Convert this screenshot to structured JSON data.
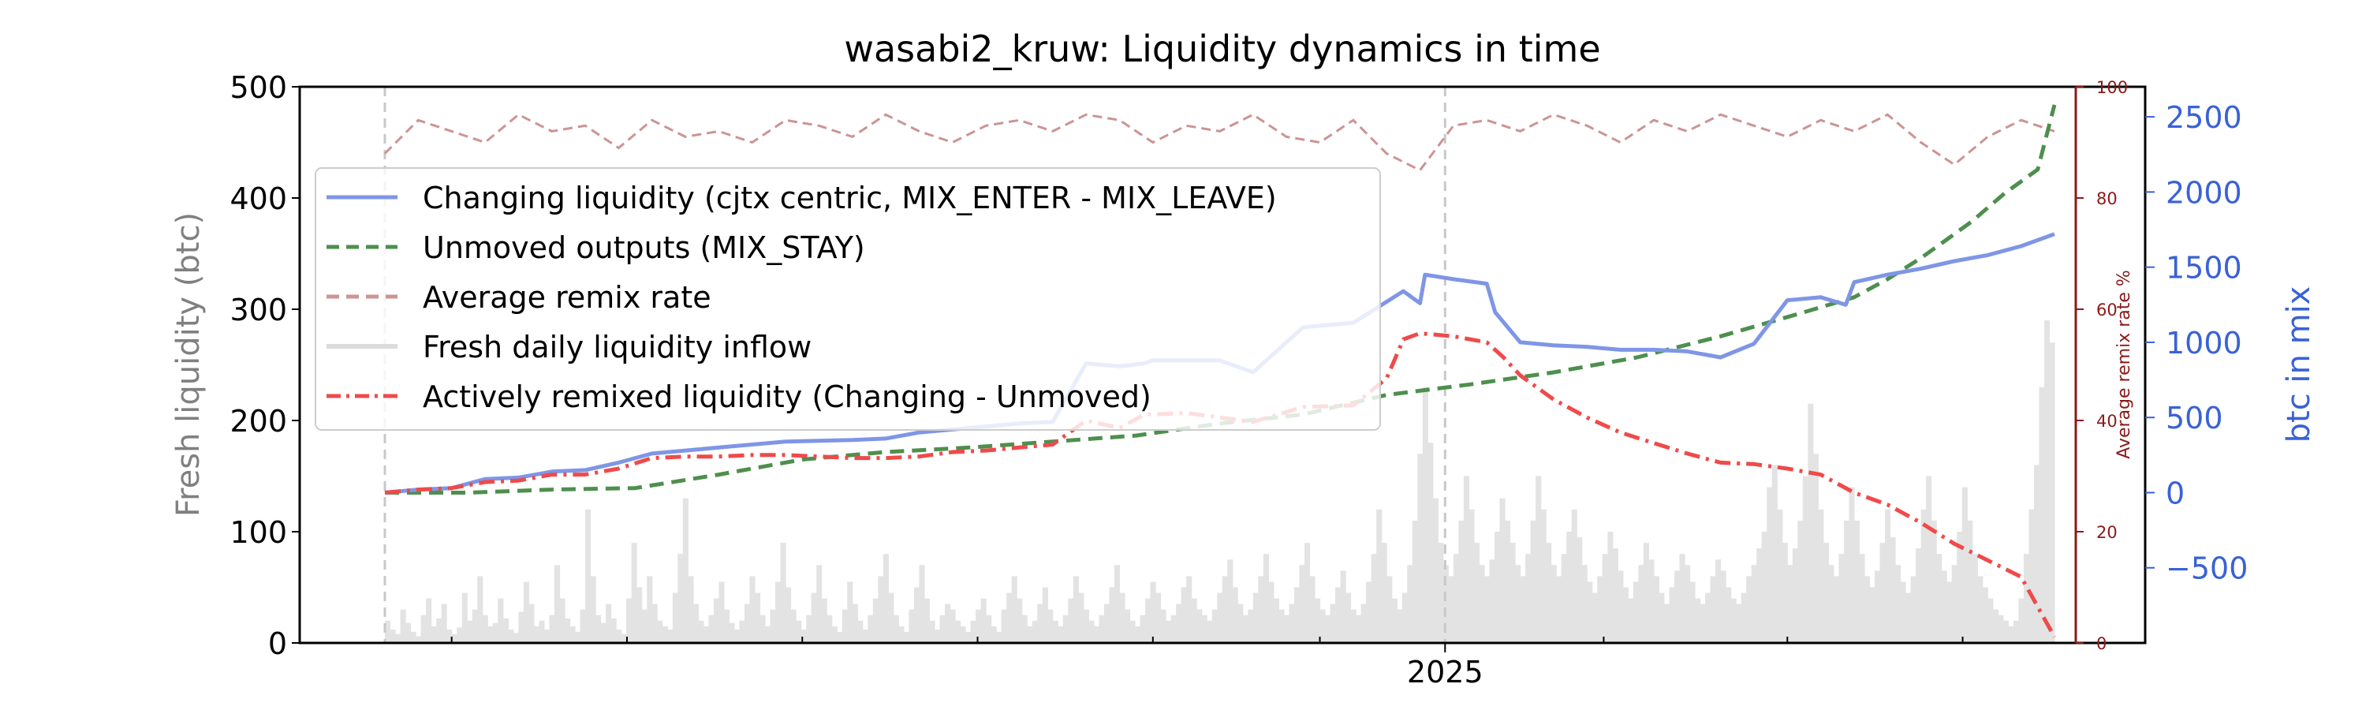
{
  "chart_data": {
    "type": "line",
    "title": "wasabi2_kruw: Liquidity dynamics in time",
    "x_tick_labels": [
      "2025"
    ],
    "left_axis": {
      "label": "Fresh liquidity (btc)",
      "ylim": [
        0,
        500
      ],
      "ticks": [
        "0",
        "100",
        "200",
        "300",
        "400",
        "500"
      ]
    },
    "remix_axis": {
      "label": "Average remix rate %",
      "ylim": [
        0,
        100
      ],
      "ticks": [
        "0",
        "20",
        "40",
        "60",
        "80",
        "100"
      ],
      "color": "#8b1a1a"
    },
    "mix_axis": {
      "label": "btc in mix",
      "ylim": [
        -1000,
        2700
      ],
      "ticks": [
        "−500",
        "0",
        "500",
        "1000",
        "1500",
        "2000",
        "2500"
      ],
      "tick_values": [
        -500,
        0,
        500,
        1000,
        1500,
        2000,
        2500
      ],
      "color": "#3a62d6"
    },
    "legend": {
      "placement": "upper-left",
      "entries": [
        {
          "label": "Changing liquidity (cjtx centric, MIX_ENTER - MIX_LEAVE)",
          "color": "#7f96e6",
          "style": "solid"
        },
        {
          "label": "Unmoved outputs (MIX_STAY)",
          "color": "#4e8f4e",
          "style": "dashed"
        },
        {
          "label": "Average remix rate",
          "color": "#cc9494",
          "style": "dashed"
        },
        {
          "label": "Fresh daily liquidity inflow",
          "color": "#dcdcdc",
          "style": "solid"
        },
        {
          "label": "Actively remixed liquidity (Changing - Unmoved)",
          "color": "#ef4a4a",
          "style": "dashdot"
        }
      ]
    },
    "series": [
      {
        "name": "Changing liquidity (cjtx centric, MIX_ENTER - MIX_LEAVE)",
        "axis": "mix",
        "x": [
          0,
          2,
          4,
          6,
          8,
          10,
          12,
          14,
          16,
          18,
          20,
          22,
          24,
          26,
          28,
          30,
          32,
          34,
          36,
          38,
          40,
          42,
          44,
          45.5,
          46,
          48,
          50,
          52,
          55,
          58,
          60,
          61,
          62,
          62.3,
          64,
          66,
          66.5,
          68,
          70,
          72,
          74,
          76,
          78,
          80,
          82,
          84,
          86,
          87.5,
          88,
          90,
          92,
          94,
          96,
          98,
          100
        ],
        "values": [
          0,
          20,
          30,
          90,
          100,
          140,
          150,
          200,
          260,
          280,
          300,
          320,
          340,
          345,
          350,
          360,
          400,
          420,
          440,
          460,
          470,
          860,
          840,
          860,
          880,
          880,
          880,
          800,
          1100,
          1130,
          1270,
          1340,
          1260,
          1450,
          1420,
          1390,
          1200,
          1000,
          980,
          970,
          950,
          950,
          940,
          900,
          990,
          1280,
          1300,
          1250,
          1400,
          1450,
          1490,
          1540,
          1580,
          1640,
          1720
        ]
      },
      {
        "name": "Unmoved outputs (MIX_STAY)",
        "axis": "mix",
        "x": [
          0,
          5,
          10,
          15,
          20,
          25,
          30,
          35,
          40,
          45,
          50,
          55,
          60,
          65,
          70,
          75,
          80,
          85,
          88,
          90,
          92,
          95,
          97,
          99,
          100
        ],
        "values": [
          0,
          0,
          20,
          30,
          120,
          220,
          270,
          300,
          340,
          380,
          460,
          520,
          650,
          720,
          800,
          900,
          1040,
          1200,
          1300,
          1420,
          1560,
          1800,
          1990,
          2150,
          2580
        ]
      },
      {
        "name": "Actively remixed liquidity (Changing - Unmoved)",
        "axis": "mix",
        "x": [
          0,
          2,
          4,
          6,
          8,
          10,
          12,
          14,
          16,
          18,
          20,
          22,
          24,
          26,
          28,
          30,
          32,
          34,
          36,
          38,
          40,
          42,
          44,
          45.5,
          46,
          48,
          50,
          52,
          55,
          58,
          60,
          61,
          62,
          64,
          66,
          67,
          68,
          70,
          72,
          74,
          76,
          78,
          80,
          82,
          84,
          86,
          88,
          90,
          92,
          94,
          96,
          98,
          100
        ],
        "values": [
          0,
          20,
          30,
          70,
          80,
          120,
          120,
          160,
          230,
          240,
          240,
          250,
          250,
          240,
          230,
          230,
          240,
          270,
          280,
          300,
          320,
          480,
          430,
          520,
          520,
          530,
          500,
          470,
          570,
          580,
          760,
          1020,
          1060,
          1040,
          1000,
          900,
          780,
          620,
          500,
          400,
          330,
          260,
          200,
          190,
          160,
          120,
          0,
          -80,
          -200,
          -340,
          -450,
          -560,
          -960
        ]
      },
      {
        "name": "Average remix rate",
        "axis": "remix",
        "x": [
          0,
          2,
          4,
          6,
          8,
          10,
          12,
          14,
          16,
          18,
          20,
          22,
          24,
          26,
          28,
          30,
          32,
          34,
          36,
          38,
          40,
          42,
          44,
          46,
          48,
          50,
          52,
          54,
          56,
          58,
          60,
          62,
          64,
          66,
          68,
          70,
          72,
          74,
          76,
          78,
          80,
          82,
          84,
          86,
          88,
          90,
          92,
          94,
          96,
          98,
          100
        ],
        "values": [
          88,
          94,
          92,
          90,
          95,
          92,
          93,
          89,
          94,
          91,
          92,
          90,
          94,
          93,
          91,
          95,
          92,
          90,
          93,
          94,
          92,
          95,
          94,
          90,
          93,
          92,
          95,
          91,
          90,
          94,
          88,
          85,
          93,
          94,
          92,
          95,
          93,
          90,
          94,
          92,
          95,
          93,
          91,
          94,
          92,
          95,
          90,
          86,
          91,
          94,
          92
        ]
      },
      {
        "name": "Fresh daily liquidity inflow",
        "axis": "left",
        "values": [
          20,
          12,
          8,
          30,
          18,
          10,
          6,
          25,
          40,
          15,
          22,
          35,
          12,
          8,
          14,
          45,
          20,
          30,
          60,
          25,
          15,
          18,
          40,
          22,
          12,
          9,
          28,
          55,
          35,
          15,
          20,
          12,
          25,
          70,
          40,
          22,
          15,
          10,
          30,
          120,
          60,
          25,
          18,
          35,
          22,
          12,
          8,
          40,
          90,
          50,
          30,
          60,
          35,
          20,
          15,
          12,
          45,
          80,
          130,
          60,
          35,
          20,
          15,
          25,
          40,
          55,
          30,
          18,
          12,
          20,
          35,
          60,
          45,
          25,
          15,
          30,
          55,
          90,
          50,
          30,
          20,
          12,
          25,
          45,
          70,
          40,
          25,
          15,
          10,
          30,
          55,
          35,
          20,
          12,
          25,
          40,
          60,
          80,
          45,
          25,
          15,
          10,
          30,
          50,
          70,
          40,
          20,
          12,
          25,
          35,
          30,
          20,
          15,
          10,
          20,
          30,
          40,
          25,
          15,
          10,
          30,
          45,
          60,
          40,
          25,
          15,
          20,
          35,
          50,
          30,
          20,
          15,
          25,
          40,
          60,
          45,
          30,
          20,
          15,
          25,
          35,
          50,
          70,
          45,
          30,
          20,
          15,
          25,
          40,
          55,
          45,
          30,
          20,
          25,
          35,
          50,
          60,
          40,
          30,
          25,
          20,
          30,
          45,
          60,
          75,
          50,
          35,
          25,
          30,
          45,
          60,
          80,
          55,
          40,
          30,
          25,
          35,
          50,
          70,
          90,
          60,
          40,
          30,
          25,
          35,
          50,
          65,
          45,
          30,
          25,
          35,
          55,
          80,
          120,
          90,
          60,
          40,
          30,
          45,
          70,
          110,
          170,
          230,
          180,
          130,
          90,
          70,
          60,
          80,
          110,
          150,
          120,
          90,
          70,
          60,
          75,
          100,
          130,
          110,
          90,
          70,
          60,
          80,
          110,
          150,
          120,
          90,
          70,
          60,
          80,
          100,
          120,
          95,
          70,
          55,
          45,
          60,
          80,
          100,
          85,
          65,
          50,
          40,
          55,
          70,
          90,
          75,
          60,
          45,
          35,
          50,
          65,
          80,
          70,
          55,
          40,
          35,
          45,
          60,
          75,
          65,
          50,
          40,
          35,
          45,
          60,
          70,
          85,
          100,
          140,
          160,
          120,
          90,
          70,
          85,
          110,
          150,
          215,
          170,
          120,
          90,
          70,
          60,
          80,
          110,
          140,
          110,
          80,
          60,
          50,
          65,
          90,
          120,
          95,
          70,
          55,
          45,
          60,
          85,
          120,
          150,
          110,
          80,
          65,
          55,
          70,
          100,
          140,
          110,
          80,
          60,
          50,
          40,
          30,
          25,
          20,
          15,
          20,
          40,
          80,
          120,
          160,
          230,
          290,
          270
        ]
      }
    ]
  }
}
